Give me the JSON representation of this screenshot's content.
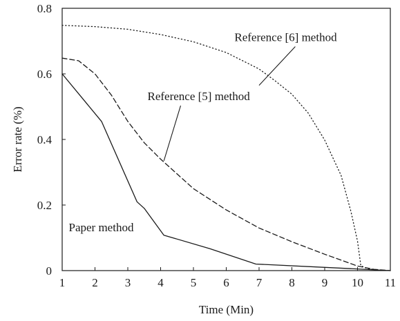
{
  "chart_data": {
    "type": "line",
    "xlabel": "Time (Min)",
    "ylabel": "Error rate (%)",
    "xlim": [
      1,
      11
    ],
    "ylim": [
      0,
      0.8
    ],
    "x_ticks": [
      "1",
      "2",
      "3",
      "4",
      "5",
      "6",
      "7",
      "8",
      "9",
      "10",
      "11"
    ],
    "y_ticks": [
      "0",
      "0.2",
      "0.4",
      "0.6",
      "0.8"
    ],
    "grid": false,
    "series": [
      {
        "name": "Paper method",
        "style": "solid",
        "color": "#1a1a1a",
        "x": [
          1.0,
          2.2,
          3.28,
          3.5,
          4.1,
          5.5,
          6.9,
          9.0,
          10.0,
          11.0
        ],
        "y": [
          0.6,
          0.455,
          0.21,
          0.19,
          0.108,
          0.067,
          0.02,
          0.01,
          0.005,
          0.0
        ]
      },
      {
        "name": "Reference [5] method",
        "style": "dashed",
        "color": "#1a1a1a",
        "x": [
          1.0,
          1.5,
          2.0,
          2.5,
          3.0,
          3.5,
          4.0,
          5.0,
          6.0,
          7.0,
          8.0,
          9.0,
          9.5,
          10.0,
          10.5,
          11.0
        ],
        "y": [
          0.648,
          0.64,
          0.6,
          0.535,
          0.455,
          0.39,
          0.34,
          0.25,
          0.185,
          0.13,
          0.088,
          0.05,
          0.032,
          0.014,
          0.004,
          0.0
        ]
      },
      {
        "name": "Reference [6] method",
        "style": "dotted",
        "color": "#1a1a1a",
        "x": [
          1.0,
          2.0,
          3.0,
          4.0,
          5.0,
          6.0,
          7.0,
          7.5,
          8.0,
          8.5,
          9.0,
          9.5,
          9.8,
          10.0,
          10.1,
          10.3,
          10.6,
          11.0
        ],
        "y": [
          0.748,
          0.744,
          0.736,
          0.72,
          0.698,
          0.665,
          0.615,
          0.578,
          0.538,
          0.48,
          0.398,
          0.29,
          0.18,
          0.09,
          0.015,
          0.006,
          0.002,
          0.0
        ]
      }
    ],
    "annotations": [
      {
        "text": "Paper method",
        "x": 1.2,
        "y": 0.12
      },
      {
        "text": "Reference [5] method",
        "x": 3.6,
        "y": 0.52,
        "arrow_to": [
          4.1,
          0.335
        ]
      },
      {
        "text": "Reference [6] method",
        "x": 6.25,
        "y": 0.7,
        "arrow_to": [
          7.0,
          0.565
        ]
      }
    ]
  }
}
